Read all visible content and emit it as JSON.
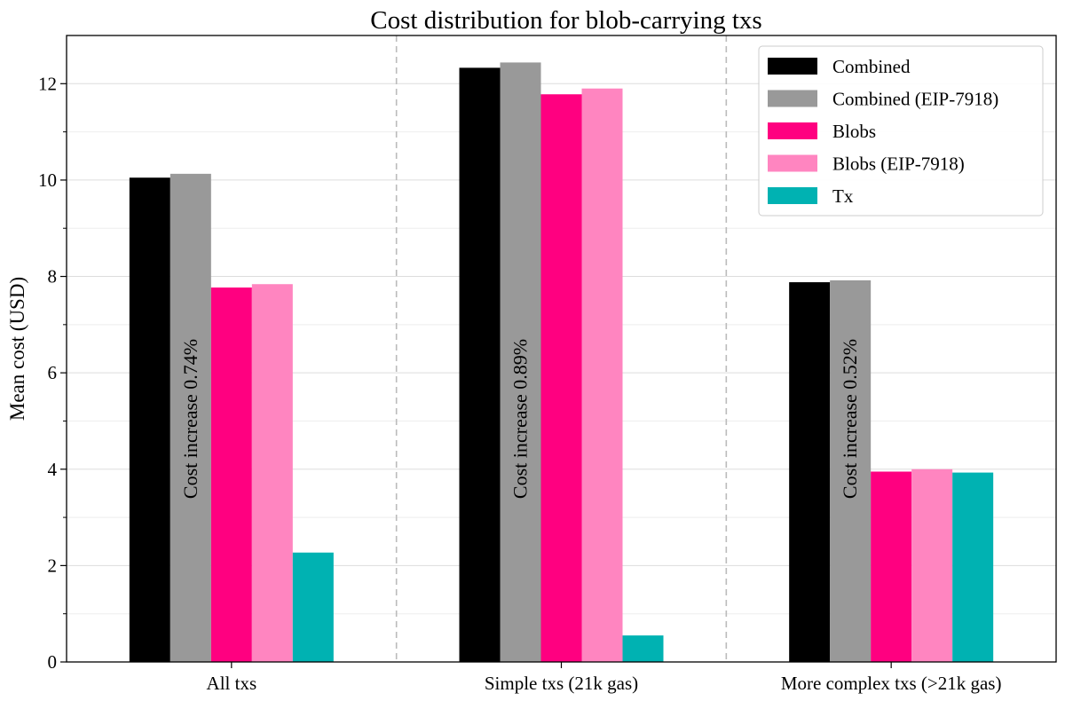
{
  "chart_data": {
    "type": "bar",
    "title": "Cost distribution for blob-carrying txs",
    "xlabel": "",
    "ylabel": "Mean cost (USD)",
    "ylim": [
      0,
      13
    ],
    "yticks": [
      0,
      2,
      4,
      6,
      8,
      10,
      12
    ],
    "grid": "horizontal",
    "legend_position": "top-right",
    "categories": [
      "All txs",
      "Simple txs (21k gas)",
      "More complex txs (>21k gas)"
    ],
    "series": [
      {
        "name": "Combined",
        "color": "#000000",
        "values": [
          10.05,
          12.33,
          7.88
        ]
      },
      {
        "name": "Combined (EIP-7918)",
        "color": "#999999",
        "values": [
          10.13,
          12.44,
          7.92
        ]
      },
      {
        "name": "Blobs",
        "color": "#ff0080",
        "values": [
          7.77,
          11.78,
          3.95
        ]
      },
      {
        "name": "Blobs (EIP-7918)",
        "color": "#ff85c0",
        "values": [
          7.84,
          11.9,
          4.0
        ]
      },
      {
        "name": "Tx",
        "color": "#00b2b2",
        "values": [
          2.27,
          0.55,
          3.93
        ]
      }
    ],
    "annotations": [
      "Cost increase 0.74%",
      "Cost increase 0.89%",
      "Cost increase 0.52%"
    ]
  }
}
